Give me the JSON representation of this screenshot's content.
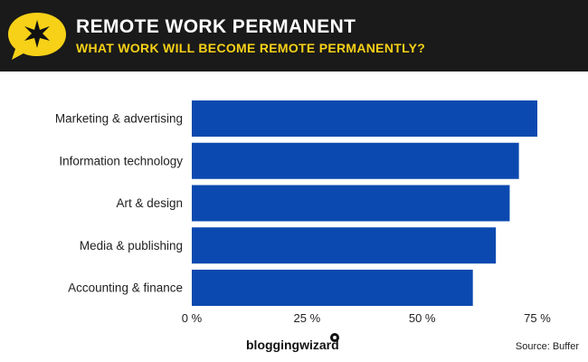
{
  "header": {
    "title": "REMOTE WORK PERMANENT",
    "subtitle": "WHAT WORK WILL BECOME REMOTE PERMANENTLY?",
    "accent_color": "#f7d117",
    "background_color": "#1a1a1a",
    "logo_icon": "star-speech-bubble-icon"
  },
  "chart_data": {
    "type": "bar",
    "orientation": "horizontal",
    "categories": [
      "Marketing & advertising",
      "Information technology",
      "Art & design",
      "Media & publishing",
      "Accounting & finance"
    ],
    "values": [
      75,
      71,
      69,
      66,
      61
    ],
    "xlim": [
      0,
      75
    ],
    "x_ticks": [
      0,
      25,
      50,
      75
    ],
    "x_tick_labels": [
      "0 %",
      "25 %",
      "50 %",
      "75 %"
    ],
    "bar_color": "#0b49b0",
    "grid": false
  },
  "footer": {
    "brand": "bloggingwizard",
    "brand_icon": "pin-dot-icon",
    "source": "Source: Buffer"
  }
}
